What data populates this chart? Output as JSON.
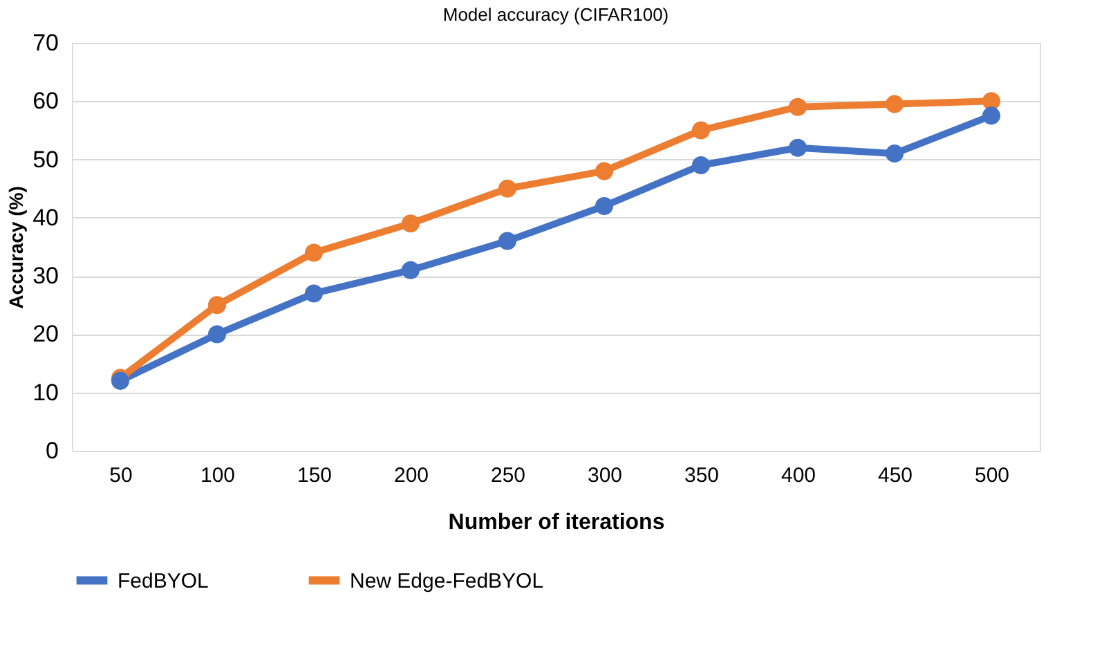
{
  "chart_data": {
    "type": "line",
    "title": "Model accuracy (CIFAR100)",
    "xlabel": "Number of iterations",
    "ylabel": "Accuracy (%)",
    "categories": [
      "50",
      "100",
      "150",
      "200",
      "250",
      "300",
      "350",
      "400",
      "450",
      "500"
    ],
    "series": [
      {
        "name": "FedBYOL",
        "color": "#4472c4",
        "values": [
          12,
          20,
          27,
          31,
          36,
          42,
          49,
          52,
          51,
          57.5
        ]
      },
      {
        "name": "New Edge-FedBYOL",
        "color": "#ed7d31",
        "values": [
          12.5,
          25,
          34,
          39,
          45,
          48,
          55,
          59,
          59.5,
          60
        ]
      }
    ],
    "ylim": [
      0,
      70
    ],
    "yticks": [
      0,
      10,
      20,
      30,
      40,
      50,
      60,
      70
    ],
    "grid": "y",
    "legend": "bottom",
    "marker": "circle",
    "line_style": "solid"
  }
}
